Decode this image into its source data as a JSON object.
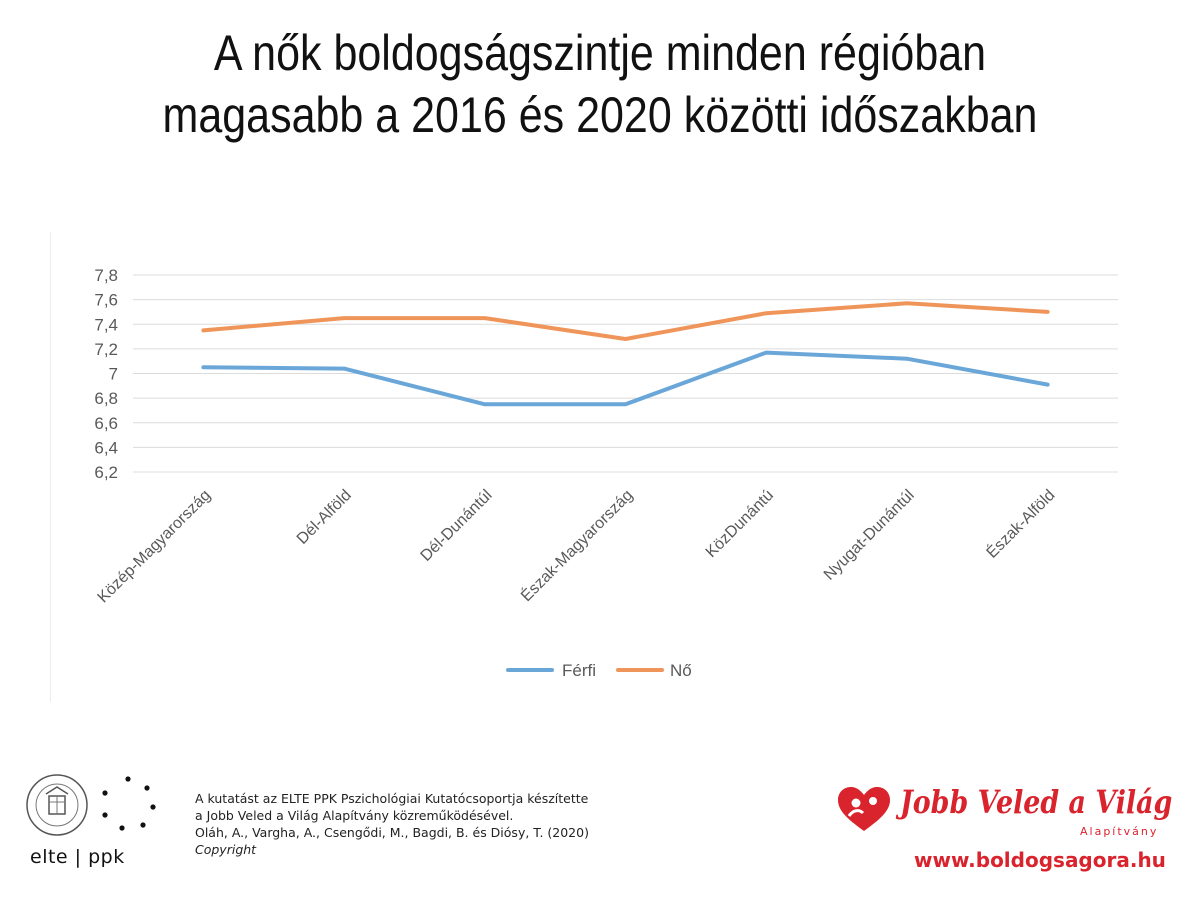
{
  "header": {
    "title_line1": "A nők boldogságszintje minden régióban",
    "title_line2": "magasabb a 2016 és 2020 közötti időszakban"
  },
  "chart_data": {
    "type": "line",
    "categories": [
      "Közép-Magyarország",
      "Dél-Alföld",
      "Dél-Dunántúl",
      "Észak-Magyarország",
      "KözDunántú",
      "Nyugat-Dunántúl",
      "Észak-Alföld"
    ],
    "series": [
      {
        "name": "Férfi",
        "values": [
          7.05,
          7.04,
          6.75,
          6.75,
          7.17,
          7.12,
          6.91
        ],
        "color": "#6aa7d8"
      },
      {
        "name": "Nő",
        "values": [
          7.35,
          7.45,
          7.45,
          7.28,
          7.49,
          7.57,
          7.5
        ],
        "color": "#f0955a"
      }
    ],
    "y_ticks": [
      "7,8",
      "7,6",
      "7,4",
      "7,2",
      "7",
      "6,8",
      "6,6",
      "6,4",
      "6,2"
    ],
    "ylim": [
      6.2,
      7.8
    ],
    "grid": true,
    "legend_position": "bottom"
  },
  "footer": {
    "note_line1": "A kutatást az ELTE PPK Pszichológiai Kutatócsoportja készítette",
    "note_line2": "a Jobb Veled a Világ Alapítvány közreműködésével.",
    "note_line3": "Oláh, A., Vargha, A., Csengődi, M., Bagdi, B. és Diósy, T.  (2020)",
    "note_line4": "Copyright",
    "elte_text": "elte | ppk",
    "brand_name": "Jobb Veled a Világ",
    "brand_sub": "Alapítvány",
    "brand_url": "www.boldogsagora.hu"
  }
}
